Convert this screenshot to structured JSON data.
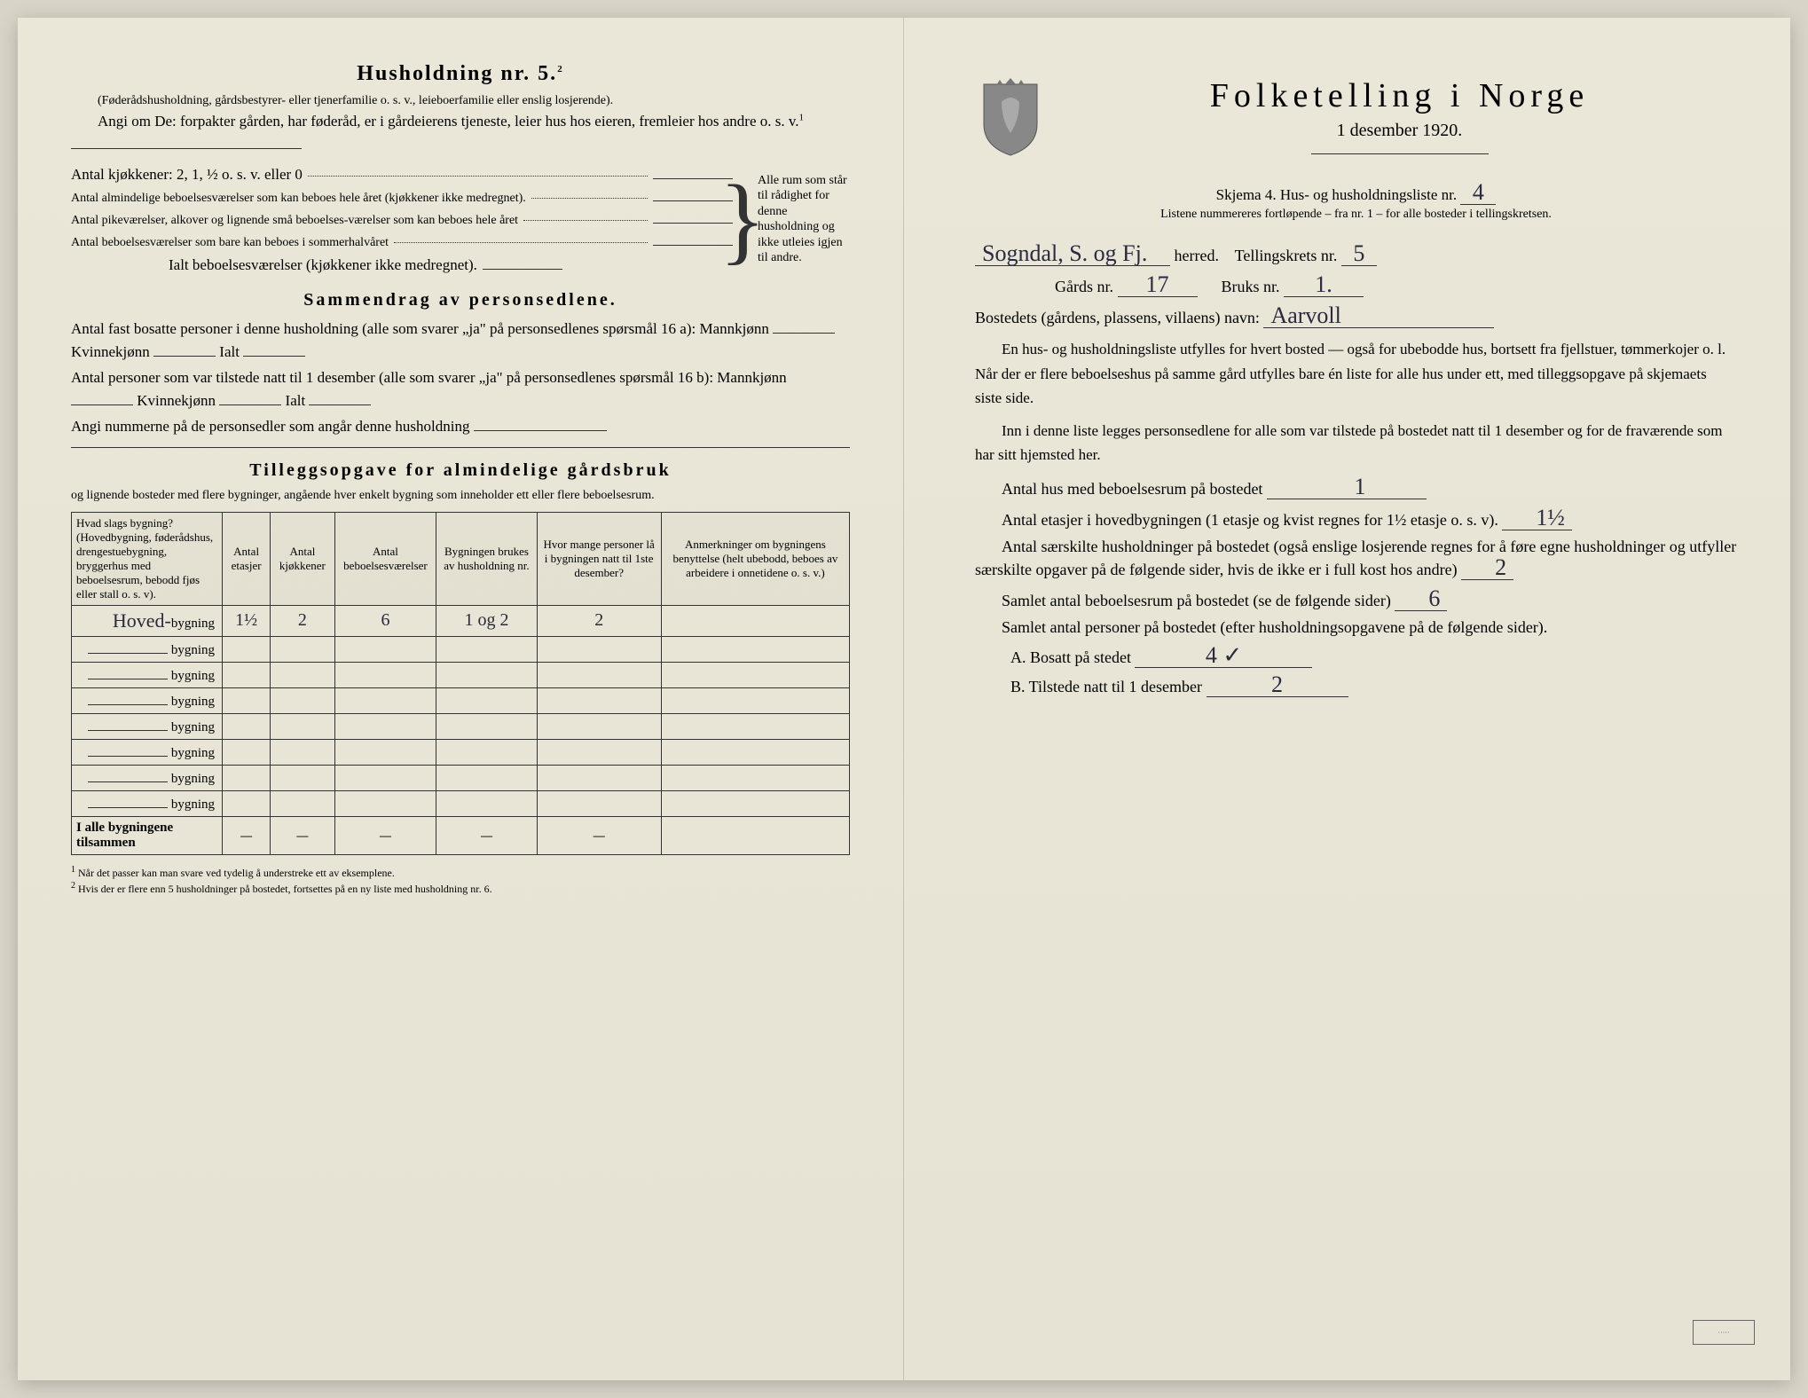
{
  "left": {
    "heading": "Husholdning nr. 5.",
    "heading_sup": "2",
    "sub": "(Føderådshusholdning, gårdsbestyrer- eller tjenerfamilie o. s. v., leieboerfamilie eller enslig losjerende).",
    "angi": "Angi om De:  forpakter gården, har føderåd, er i gårdeierens tjeneste, leier hus hos eieren, fremleier hos andre o. s. v.",
    "angi_sup": "1",
    "kitchens_label": "Antal kjøkkener: 2, 1, ½ o. s. v. eller 0",
    "rooms1": "Antal almindelige beboelsesværelser som kan beboes hele året (kjøkkener ikke medregnet).",
    "rooms2": "Antal pikeværelser, alkover og lignende små beboelses-værelser som kan beboes hele året",
    "rooms3": "Antal beboelsesværelser som bare kan beboes i sommerhalvåret",
    "rooms_total": "Ialt beboelsesværelser (kjøkkener ikke medregnet).",
    "brace_text": "Alle rum som står til rådighet for denne husholdning og ikke utleies igjen til andre.",
    "sammendrag_heading": "Sammendrag av personsedlene.",
    "samm1a": "Antal fast bosatte personer i denne husholdning (alle som svarer „ja\" på personsedlenes spørsmål 16 a): Mannkjønn",
    "samm1b": "Kvinnekjønn",
    "samm1c": "Ialt",
    "samm2a": "Antal personer som var tilstede natt til 1 desember (alle som svarer „ja\" på personsedlenes spørsmål 16 b): Mannkjønn",
    "samm3": "Angi nummerne på de personsedler som angår denne husholdning",
    "tillegg_heading": "Tilleggsopgave for almindelige gårdsbruk",
    "tillegg_sub": "og lignende bosteder med flere bygninger, angående hver enkelt bygning som inneholder ett eller flere beboelsesrum.",
    "table": {
      "headers": [
        "Hvad slags bygning?\n(Hovedbygning, føderådshus, drengestuebygning, bryggerhus med beboelsesrum, bebodd fjøs eller stall o. s. v).",
        "Antal etasjer",
        "Antal kjøkkener",
        "Antal beboelsesværelser",
        "Bygningen brukes av husholdning nr.",
        "Hvor mange personer lå i bygningen natt til 1ste desember?",
        "Anmerkninger om bygningens benyttelse (helt ubebodd, beboes av arbeidere i onnetidene o. s. v.)"
      ],
      "rows": [
        {
          "name_prefix": "Hoved-",
          "suffix": "bygning",
          "etasjer": "1½",
          "kjokken": "2",
          "beboelse": "6",
          "hushold": "1 og 2",
          "personer": "2",
          "anm": ""
        },
        {
          "name_prefix": "",
          "suffix": "bygning",
          "etasjer": "",
          "kjokken": "",
          "beboelse": "",
          "hushold": "",
          "personer": "",
          "anm": ""
        },
        {
          "name_prefix": "",
          "suffix": "bygning",
          "etasjer": "",
          "kjokken": "",
          "beboelse": "",
          "hushold": "",
          "personer": "",
          "anm": ""
        },
        {
          "name_prefix": "",
          "suffix": "bygning",
          "etasjer": "",
          "kjokken": "",
          "beboelse": "",
          "hushold": "",
          "personer": "",
          "anm": ""
        },
        {
          "name_prefix": "",
          "suffix": "bygning",
          "etasjer": "",
          "kjokken": "",
          "beboelse": "",
          "hushold": "",
          "personer": "",
          "anm": ""
        },
        {
          "name_prefix": "",
          "suffix": "bygning",
          "etasjer": "",
          "kjokken": "",
          "beboelse": "",
          "hushold": "",
          "personer": "",
          "anm": ""
        },
        {
          "name_prefix": "",
          "suffix": "bygning",
          "etasjer": "",
          "kjokken": "",
          "beboelse": "",
          "hushold": "",
          "personer": "",
          "anm": ""
        },
        {
          "name_prefix": "",
          "suffix": "bygning",
          "etasjer": "",
          "kjokken": "",
          "beboelse": "",
          "hushold": "",
          "personer": "",
          "anm": ""
        }
      ],
      "totals_label": "I alle bygningene tilsammen"
    },
    "footnote1": "Når det passer kan man svare ved tydelig å understreke ett av eksemplene.",
    "footnote2": "Hvis der er flere enn 5 husholdninger på bostedet, fortsettes på en ny liste med husholdning nr. 6."
  },
  "right": {
    "title": "Folketelling i Norge",
    "date": "1 desember 1920.",
    "skjema": "Skjema 4.  Hus- og husholdningsliste nr.",
    "skjema_nr": "4",
    "listene": "Listene nummereres fortløpende – fra nr. 1 – for alle bosteder i tellingskretsen.",
    "herred_value": "Sogndal, S. og Fj.",
    "herred_label": "herred.",
    "krets_label": "Tellingskrets nr.",
    "krets_value": "5",
    "gards_label": "Gårds nr.",
    "gards_value": "17",
    "bruks_label": "Bruks nr.",
    "bruks_value": "1.",
    "bosted_label": "Bostedets (gårdens, plassens, villaens) navn:",
    "bosted_value": "Aarvoll",
    "para1": "En hus- og husholdningsliste utfylles for hvert bosted — også for ubebodde hus, bortsett fra fjellstuer, tømmerkojer o. l.  Når der er flere beboelseshus på samme gård utfylles bare én liste for alle hus under ett, med tilleggsopgave på skjemaets siste side.",
    "para2": "Inn i denne liste legges personsedlene for alle som var tilstede på bostedet natt til 1 desember og for de fraværende som har sitt hjemsted her.",
    "q1_label": "Antal hus med beboelsesrum på bostedet",
    "q1_value": "1",
    "q2_label_a": "Antal etasjer i hovedbygningen (1 etasje og kvist regnes for 1½ etasje o. s. v).",
    "q2_value": "1½",
    "q3_label": "Antal særskilte husholdninger på bostedet (også enslige losjerende regnes for å føre egne husholdninger og utfyller særskilte opgaver på de følgende sider, hvis de ikke er i full kost hos andre)",
    "q3_value": "2",
    "q4_label": "Samlet antal beboelsesrum på bostedet (se de følgende sider)",
    "q4_value": "6",
    "q5_label": "Samlet antal personer på bostedet (efter husholdningsopgavene på de følgende sider).",
    "qA_label": "A.  Bosatt på stedet",
    "qA_value": "4 ✓",
    "qB_label": "B.  Tilstede natt til 1 desember",
    "qB_value": "2"
  },
  "colors": {
    "paper": "#e8e4d6",
    "ink": "#222222",
    "handwriting": "#2a2a40"
  }
}
